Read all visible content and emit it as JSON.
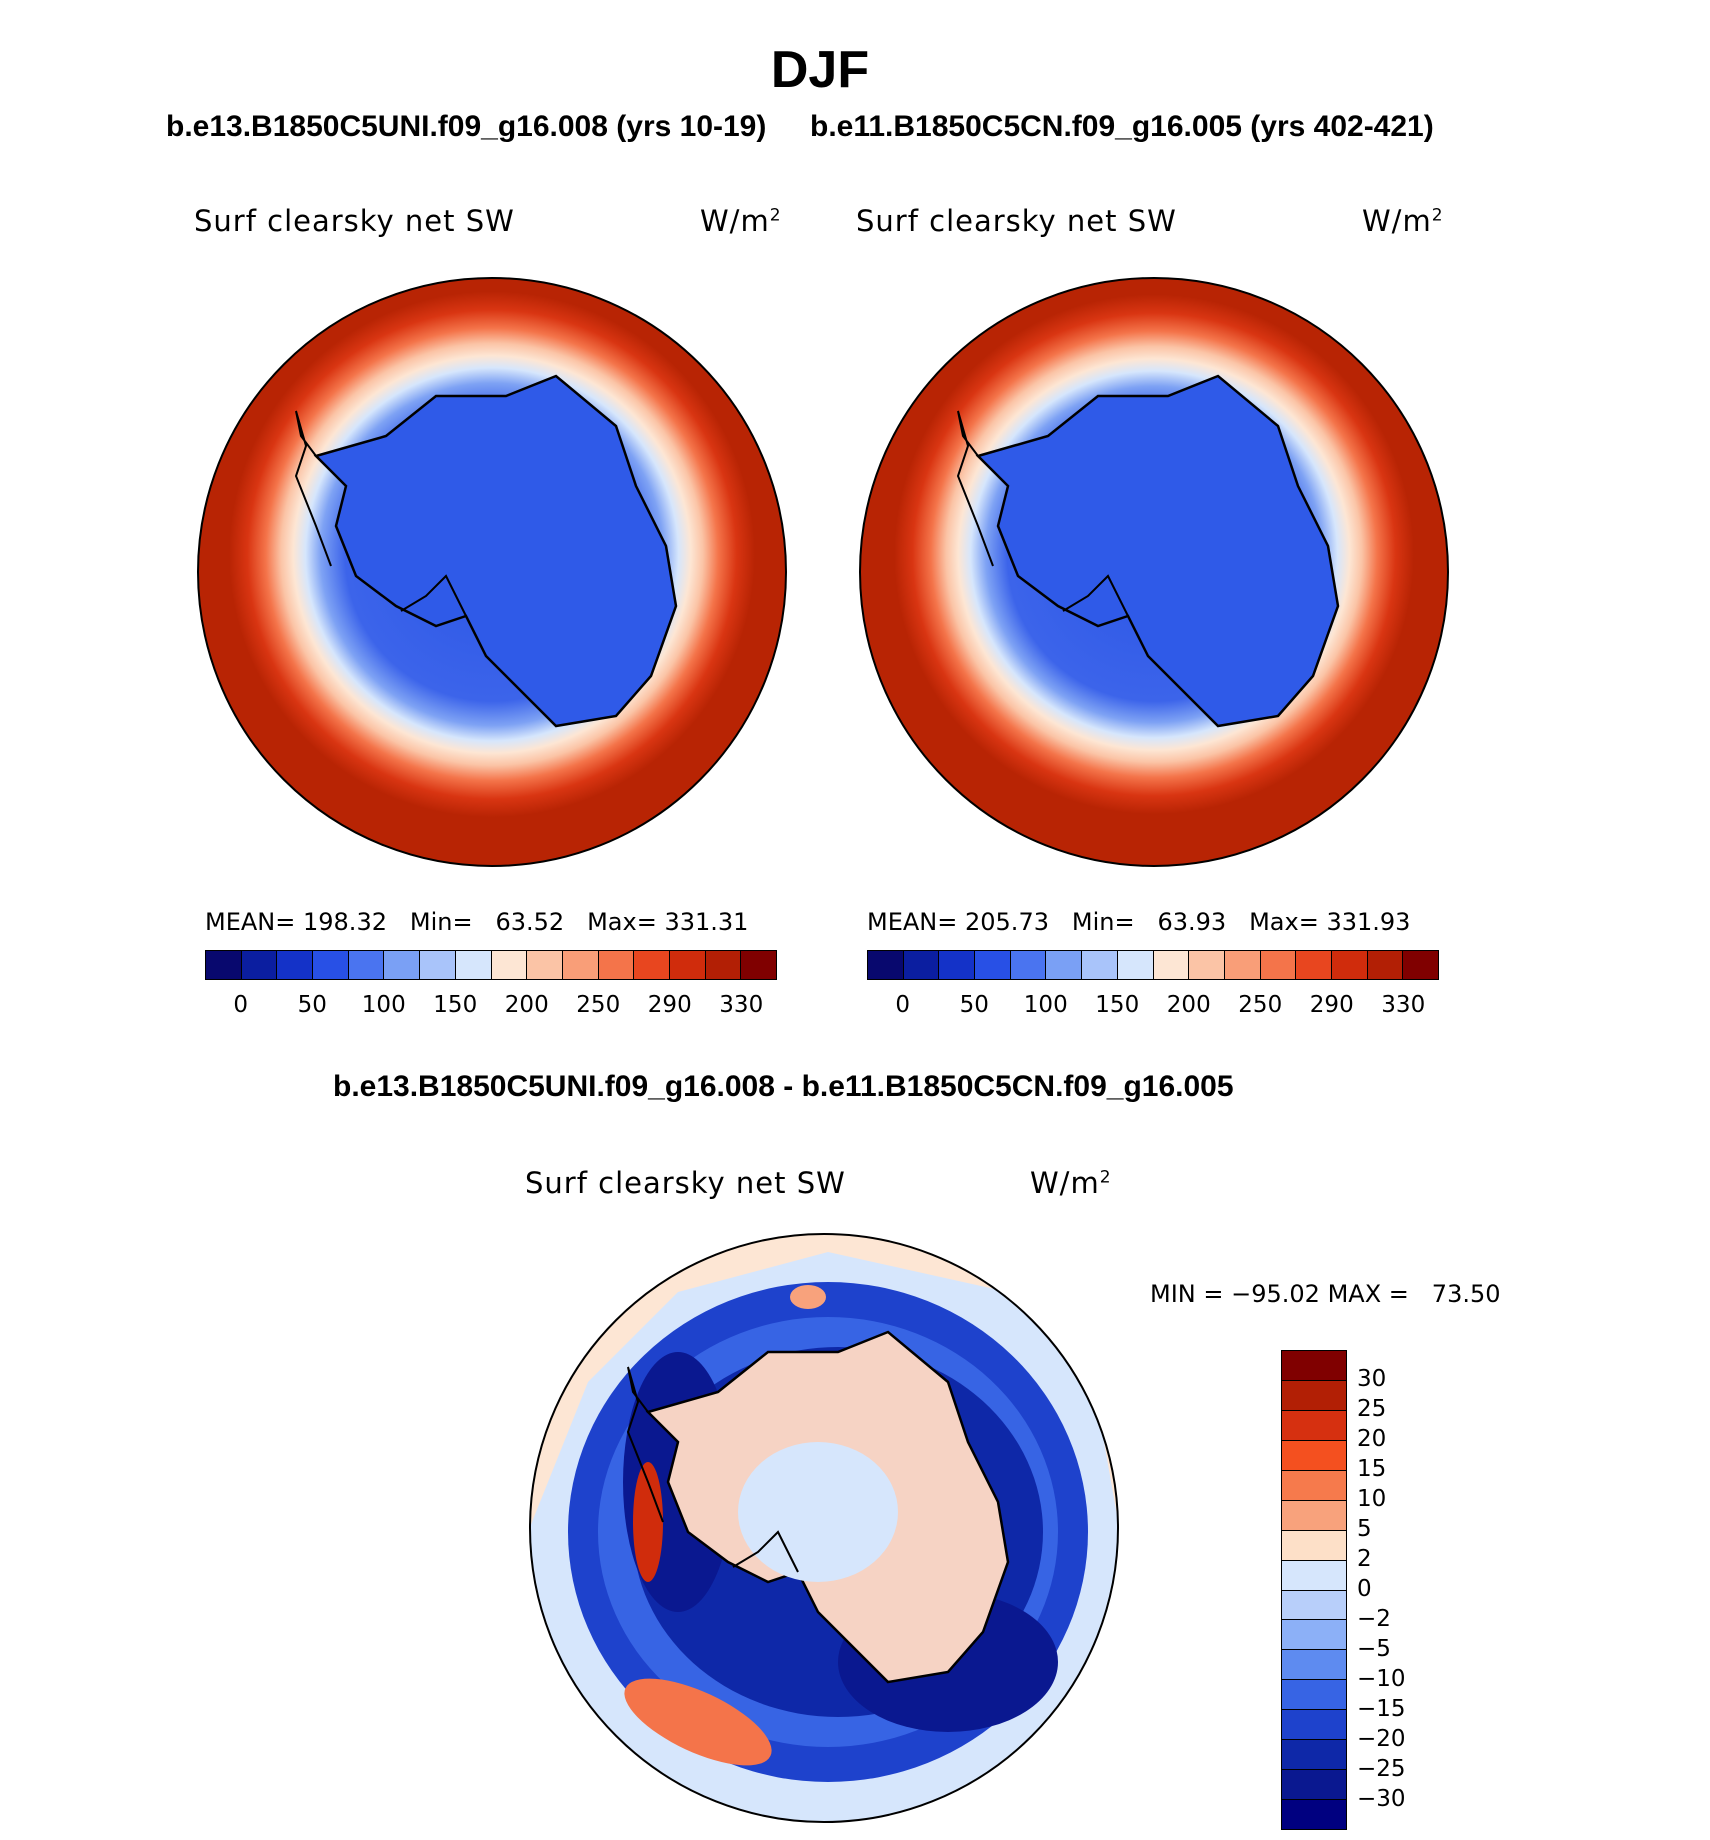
{
  "title": "DJF",
  "panels": [
    {
      "case": "b.e13.B1850C5UNI.f09_g16.008 (yrs 10-19)",
      "variable": "Surf clearsky net SW",
      "units": "W/m",
      "units_sup": "2",
      "mean_label": "MEAN=",
      "mean": "198.32",
      "min_label": "Min=",
      "min": "63.52",
      "max_label": "Max=",
      "max": "331.31"
    },
    {
      "case": "b.e11.B1850C5CN.f09_g16.005 (yrs 402-421)",
      "variable": "Surf clearsky net SW",
      "units": "W/m",
      "units_sup": "2",
      "mean_label": "MEAN=",
      "mean": "205.73",
      "min_label": "Min=",
      "min": "63.93",
      "max_label": "Max=",
      "max": "331.93"
    }
  ],
  "colorbar": {
    "ticks": [
      "0",
      "50",
      "100",
      "150",
      "200",
      "250",
      "290",
      "330"
    ],
    "colors": [
      "#08086e",
      "#0b1ea0",
      "#1432c8",
      "#2850e6",
      "#4a74f0",
      "#7aa0f5",
      "#a9c4fa",
      "#d6e6fc",
      "#fde6d4",
      "#fbc4a6",
      "#f99e78",
      "#f4744a",
      "#e8461f",
      "#d02c0c",
      "#b21f05",
      "#800000"
    ]
  },
  "diff": {
    "title": "b.e13.B1850C5UNI.f09_g16.008 - b.e11.B1850C5CN.f09_g16.005",
    "variable": "Surf clearsky net SW",
    "units": "W/m",
    "units_sup": "2",
    "min_label": "MIN =",
    "min": "−95.02",
    "max_label": "MAX =",
    "max": "73.50",
    "ticks": [
      "30",
      "25",
      "20",
      "15",
      "10",
      "5",
      "2",
      "0",
      "−2",
      "−5",
      "−10",
      "−15",
      "−20",
      "−25",
      "−30"
    ],
    "colors": [
      "#800000",
      "#b21f05",
      "#d63010",
      "#f4501f",
      "#f67a4c",
      "#f8a27c",
      "#fde0c8",
      "#d6e6fc",
      "#b8cffa",
      "#8cb0f7",
      "#5e8bf0",
      "#3764e4",
      "#1e42cc",
      "#0e28a8",
      "#0a1890",
      "#000080"
    ]
  }
}
